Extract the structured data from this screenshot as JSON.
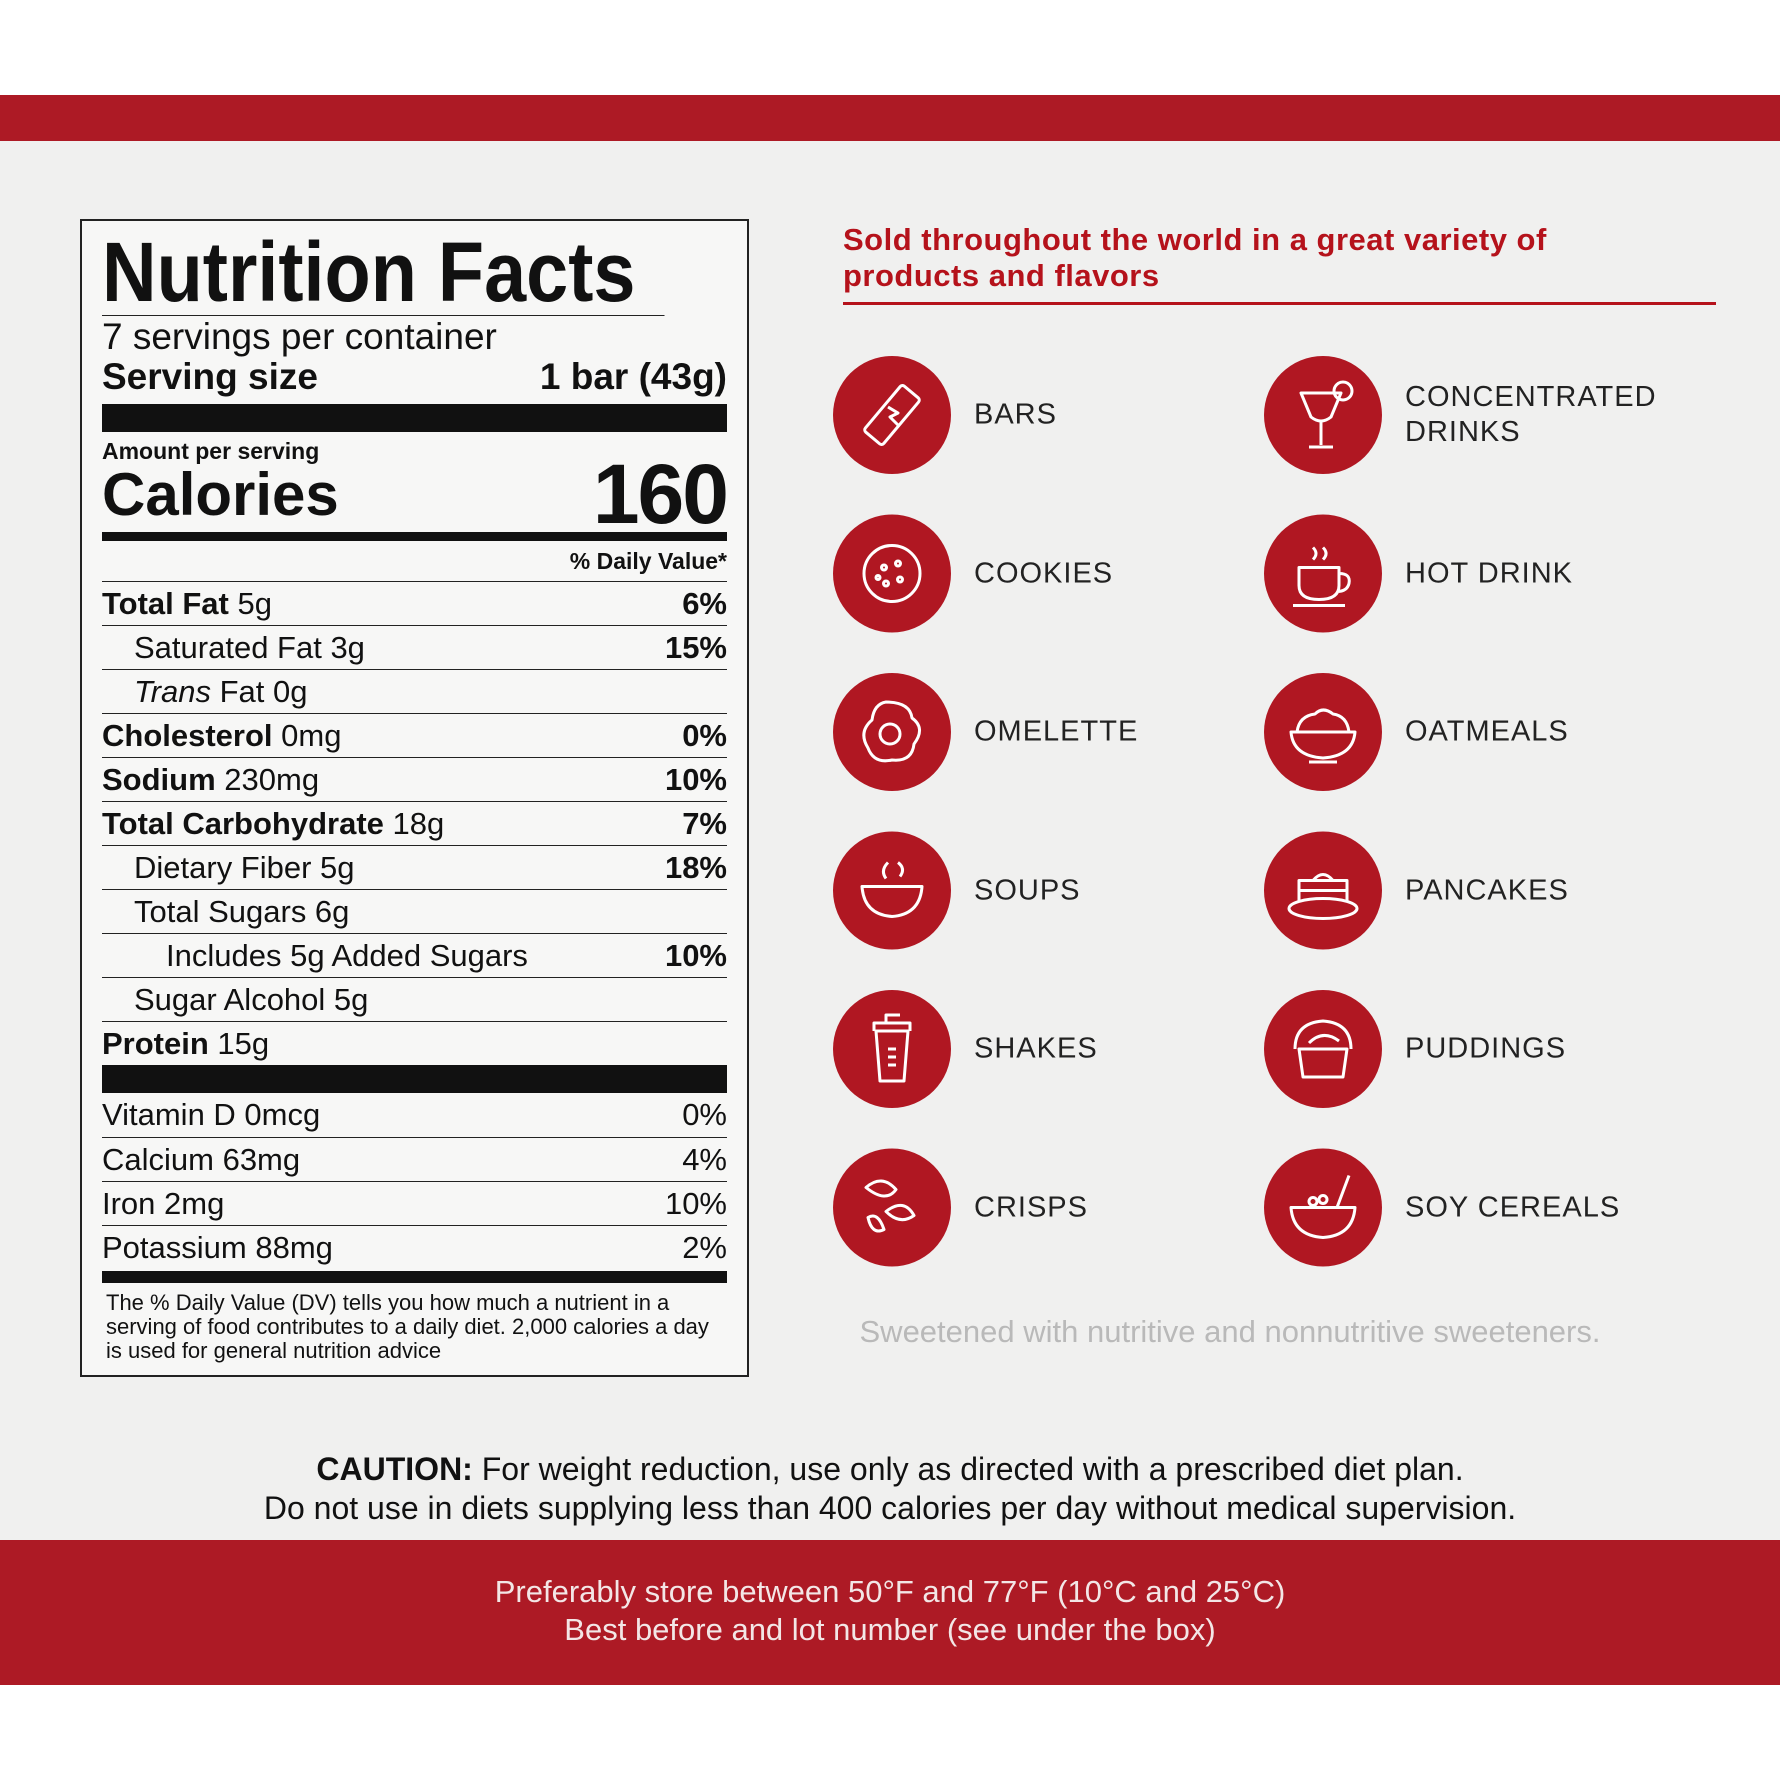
{
  "nutrition_facts": {
    "title": "Nutrition Facts",
    "servings": "7 servings per container",
    "serving_size_label": "Serving size",
    "serving_size": "1 bar (43g)",
    "amount_per_serving": "Amount per serving",
    "calories_label": "Calories",
    "calories": 160,
    "dv_header": "% Daily Value*",
    "nutrients": [
      {
        "name": "Total Fat",
        "amount": "5g",
        "dv": "6%",
        "bold": true,
        "indent": 0
      },
      {
        "name": "Saturated Fat 3g",
        "dv": "15%",
        "bold": false,
        "indent": 1
      },
      {
        "name": "Trans",
        "amount": "Fat 0g",
        "italic": true,
        "bold": false,
        "indent": 1
      },
      {
        "name": "Cholesterol",
        "amount": "0mg",
        "dv": "0%",
        "bold": true,
        "indent": 0
      },
      {
        "name": "Sodium",
        "amount": "230mg",
        "dv": "10%",
        "bold": true,
        "indent": 0
      },
      {
        "name": "Total Carbohydrate",
        "amount": "18g",
        "dv": "7%",
        "bold": true,
        "indent": 0
      },
      {
        "name": "Dietary Fiber 5g",
        "dv": "18%",
        "bold": false,
        "indent": 1
      },
      {
        "name": "Total Sugars 6g",
        "bold": false,
        "indent": 1
      },
      {
        "name": "Includes 5g Added Sugars",
        "dv": "10%",
        "bold": false,
        "indent": 2
      },
      {
        "name": "Sugar Alcohol 5g",
        "bold": false,
        "indent": 1
      },
      {
        "name": "Protein",
        "amount": "15g",
        "bold": true,
        "indent": 0
      }
    ],
    "vitamins": [
      {
        "name": "Vitamin D 0mcg",
        "dv": "0%"
      },
      {
        "name": "Calcium 63mg",
        "dv": "4%"
      },
      {
        "name": "Iron 2mg",
        "dv": "10%"
      },
      {
        "name": "Potassium 88mg",
        "dv": "2%"
      }
    ],
    "footnote": "The % Daily Value (DV) tells you how much a nutrient in a serving of food contributes to a daily diet. 2,000 calories a day is used for general nutrition advice"
  },
  "products_heading": "Sold throughout the world in a great variety of products and flavors",
  "products": [
    "BARS",
    "CONCENTRATED DRINKS",
    "COOKIES",
    "HOT DRINK",
    "OMELETTE",
    "OATMEALS",
    "SOUPS",
    "PANCAKES",
    "SHAKES",
    "PUDDINGS",
    "CRISPS",
    "SOY CEREALS"
  ],
  "sweetener_note": "Sweetened with nutritive and nonnutritive sweeteners.",
  "caution": {
    "label": "CAUTION:",
    "text": "For weight reduction, use only as directed with a prescribed diet plan.",
    "line2": "Do not use in diets supplying less than 400 calories per day without medical supervision."
  },
  "footer": [
    "Preferably store between 50°F and 77°F (10°C and 25°C)",
    "Best before and lot number (see under the box)"
  ]
}
